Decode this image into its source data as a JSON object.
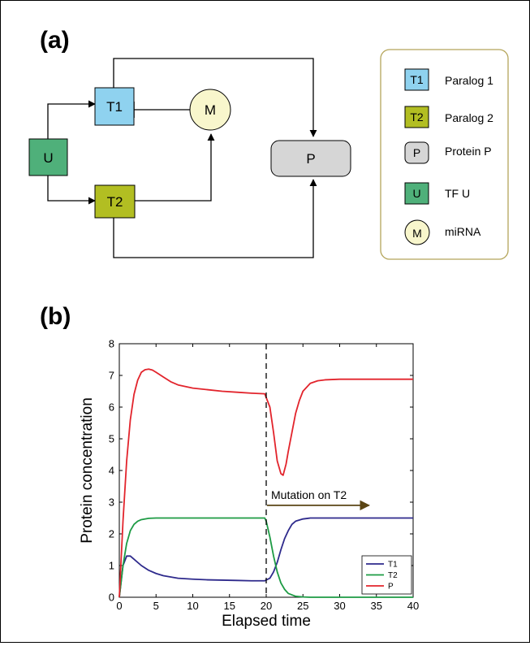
{
  "panel_a": {
    "label": "(a)",
    "nodes": {
      "U": {
        "label": "U",
        "color": "#4fb07a"
      },
      "T1": {
        "label": "T1",
        "color": "#8fd2ef"
      },
      "T2": {
        "label": "T2",
        "color": "#b2be22"
      },
      "M": {
        "label": "M",
        "color": "#f8f6cc"
      },
      "P": {
        "label": "P",
        "color": "#d6d6d6"
      }
    },
    "legend": {
      "border_color": "#b4a55a",
      "items": [
        {
          "key": "T1",
          "text": "Paralog 1",
          "color": "#8fd2ef"
        },
        {
          "key": "T2",
          "text": "Paralog 2",
          "color": "#b2be22"
        },
        {
          "key": "P",
          "text": "Protein P",
          "color": "#d6d6d6"
        },
        {
          "key": "U",
          "text": "TF U",
          "color": "#4fb07a"
        },
        {
          "key": "M",
          "text": "miRNA",
          "color": "#f8f6cc"
        }
      ]
    }
  },
  "panel_b": {
    "label": "(b)",
    "chart_data": {
      "type": "line",
      "xlabel": "Elapsed time",
      "ylabel": "Protein concentration",
      "xlim": [
        0,
        40
      ],
      "ylim": [
        0,
        8
      ],
      "xticks": [
        "0",
        "5",
        "10",
        "15",
        "20",
        "25",
        "30",
        "35",
        "40"
      ],
      "yticks": [
        "0",
        "1",
        "2",
        "3",
        "4",
        "5",
        "6",
        "7",
        "8"
      ],
      "grid": false,
      "legend_position": "bottom-right",
      "annotation": {
        "text": "Mutation on T2",
        "x_start": 20,
        "x_end": 34,
        "y": 2.9,
        "color": "#5a4514"
      },
      "vline": {
        "x": 20
      },
      "series": [
        {
          "name": "T1",
          "color": "#2e2a8c",
          "x": [
            0,
            0.5,
            1,
            1.5,
            2,
            3,
            4,
            5,
            6,
            8,
            10,
            12,
            14,
            16,
            18,
            19.8,
            20.5,
            21,
            21.5,
            22,
            22.5,
            23,
            23.5,
            24,
            25,
            26,
            28,
            30,
            35,
            40
          ],
          "y": [
            0,
            1.0,
            1.3,
            1.3,
            1.2,
            1.0,
            0.85,
            0.75,
            0.68,
            0.6,
            0.57,
            0.55,
            0.54,
            0.53,
            0.52,
            0.52,
            0.6,
            0.8,
            1.1,
            1.5,
            1.85,
            2.1,
            2.3,
            2.4,
            2.47,
            2.5,
            2.5,
            2.5,
            2.5,
            2.5
          ]
        },
        {
          "name": "T2",
          "color": "#1d9b44",
          "x": [
            0,
            0.5,
            1,
            1.5,
            2,
            2.5,
            3,
            4,
            5,
            10,
            15,
            19.8,
            20,
            20.5,
            21,
            21.5,
            22,
            22.5,
            23,
            24,
            25,
            26,
            28,
            30,
            35,
            40
          ],
          "y": [
            0,
            1.0,
            1.7,
            2.1,
            2.3,
            2.4,
            2.45,
            2.49,
            2.5,
            2.5,
            2.5,
            2.5,
            2.4,
            1.9,
            1.3,
            0.8,
            0.45,
            0.25,
            0.12,
            0.03,
            0.01,
            0,
            0,
            0,
            0,
            0
          ]
        },
        {
          "name": "P",
          "color": "#e2242c",
          "x": [
            0,
            0.5,
            1,
            1.5,
            2,
            2.5,
            3,
            3.5,
            4,
            4.5,
            5,
            6,
            7,
            8,
            10,
            12,
            14,
            16,
            18,
            19.8,
            20.5,
            21,
            21.5,
            22,
            22.3,
            22.7,
            23,
            23.5,
            24,
            24.5,
            25,
            26,
            27,
            28,
            30,
            35,
            40
          ],
          "y": [
            0,
            2.4,
            4.3,
            5.6,
            6.4,
            6.85,
            7.1,
            7.18,
            7.2,
            7.17,
            7.1,
            6.95,
            6.8,
            6.7,
            6.6,
            6.55,
            6.5,
            6.47,
            6.44,
            6.42,
            6.0,
            5.2,
            4.3,
            3.9,
            3.85,
            4.2,
            4.6,
            5.2,
            5.8,
            6.2,
            6.5,
            6.75,
            6.83,
            6.86,
            6.88,
            6.88,
            6.88
          ]
        }
      ]
    }
  }
}
